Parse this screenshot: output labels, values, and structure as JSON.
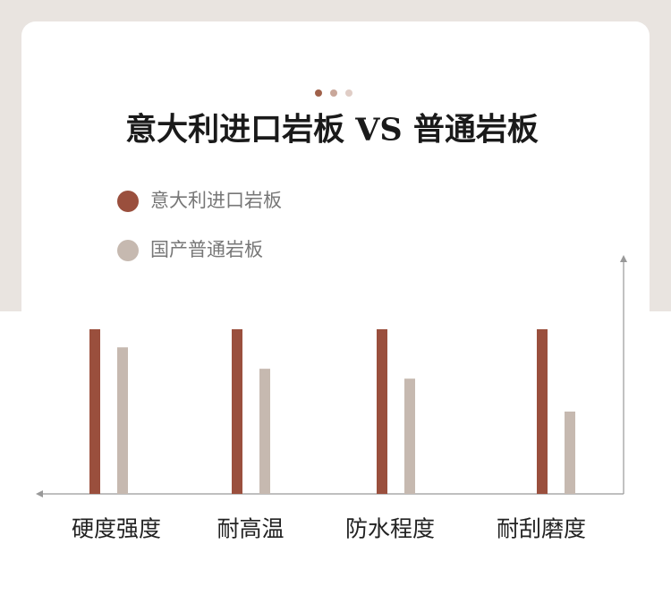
{
  "chart_data": {
    "type": "bar",
    "title": "意大利进口岩板 VS 普通岩板",
    "categories": [
      "硬度强度",
      "耐高温",
      "防水程度",
      "耐刮磨度"
    ],
    "series": [
      {
        "name": "意大利进口岩板",
        "color": "#9a4f3d",
        "values": [
          100,
          100,
          100,
          100
        ]
      },
      {
        "name": "国产普通岩板",
        "color": "#c6b9b0",
        "values": [
          89,
          76,
          70,
          50
        ]
      }
    ],
    "ylim": [
      0,
      144
    ]
  }
}
